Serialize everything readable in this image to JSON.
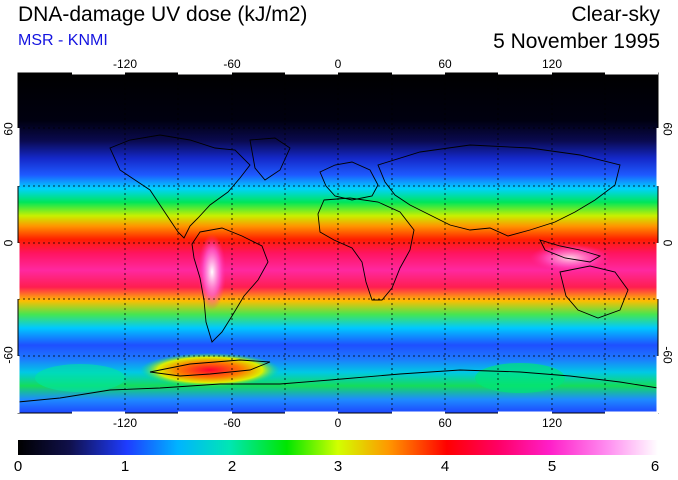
{
  "header": {
    "title": "DNA-damage UV dose (kJ/m2)",
    "subtitle": "MSR - KNMI",
    "condition": "Clear-sky",
    "date": "5 November 1995"
  },
  "map": {
    "lon_ticks_top": [
      "-120",
      "-60",
      "0",
      "60",
      "120"
    ],
    "lon_ticks_bottom": [
      "-120",
      "-60",
      "0",
      "60",
      "120"
    ],
    "lat_ticks_left": [
      "60",
      "0",
      "-60"
    ],
    "lat_ticks_right": [
      "60",
      "0",
      "-60"
    ]
  },
  "colorbar": {
    "labels": [
      "0",
      "1",
      "2",
      "3",
      "4",
      "5",
      "6"
    ],
    "colors": [
      "#000000",
      "#1a1a6e",
      "#1e3cff",
      "#00e6ff",
      "#00e65a",
      "#d4ff00",
      "#ffe600",
      "#ff7800",
      "#ff0000",
      "#ff1f86",
      "#ff3fd8",
      "#ffffff"
    ]
  }
}
